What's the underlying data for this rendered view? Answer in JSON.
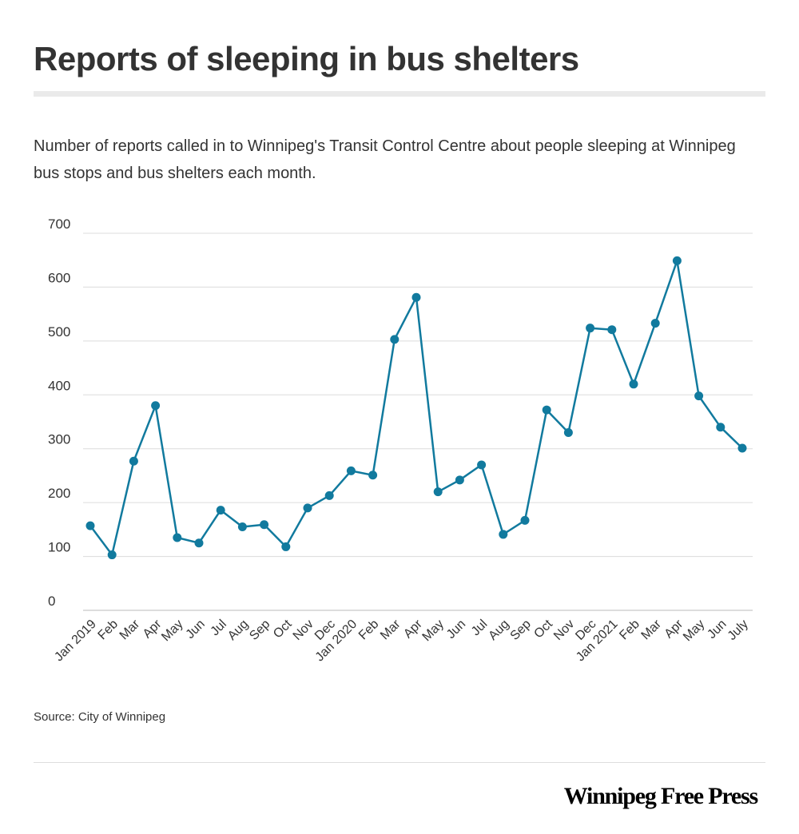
{
  "title": "Reports of sleeping in bus shelters",
  "subtitle": "Number of reports called in to Winnipeg's Transit Control Centre about  people sleeping at Winnipeg bus stops and bus shelters each month.",
  "source": "Source: City of Winnipeg",
  "brand": "Winnipeg Free Press",
  "chart_data": {
    "type": "line",
    "title": "Reports of sleeping in bus shelters",
    "subtitle": "Number of reports called in to Winnipeg's Transit Control Centre about  people sleeping at Winnipeg bus stops and bus shelters each month.",
    "xlabel": "",
    "ylabel": "",
    "ylim": [
      0,
      700
    ],
    "yticks": [
      0,
      100,
      200,
      300,
      400,
      500,
      600,
      700
    ],
    "grid": true,
    "legend": "none",
    "color": "#117a9e",
    "categories": [
      "Jan 2019",
      "Feb",
      "Mar",
      "Apr",
      "May",
      "Jun",
      "Jul",
      "Aug",
      "Sep",
      "Oct",
      "Nov",
      "Dec",
      "Jan 2020",
      "Feb",
      "Mar",
      "Apr",
      "May",
      "Jun",
      "Jul",
      "Aug",
      "Sep",
      "Oct",
      "Nov",
      "Dec",
      "Jan 2021",
      "Feb",
      "Mar",
      "Apr",
      "May",
      "Jun",
      "July"
    ],
    "series": [
      {
        "values": [
          157,
          103,
          277,
          380,
          135,
          125,
          186,
          155,
          159,
          118,
          190,
          213,
          259,
          251,
          503,
          581,
          220,
          242,
          270,
          141,
          167,
          372,
          330,
          524,
          521,
          420,
          533,
          649,
          398,
          340,
          301
        ]
      }
    ]
  }
}
